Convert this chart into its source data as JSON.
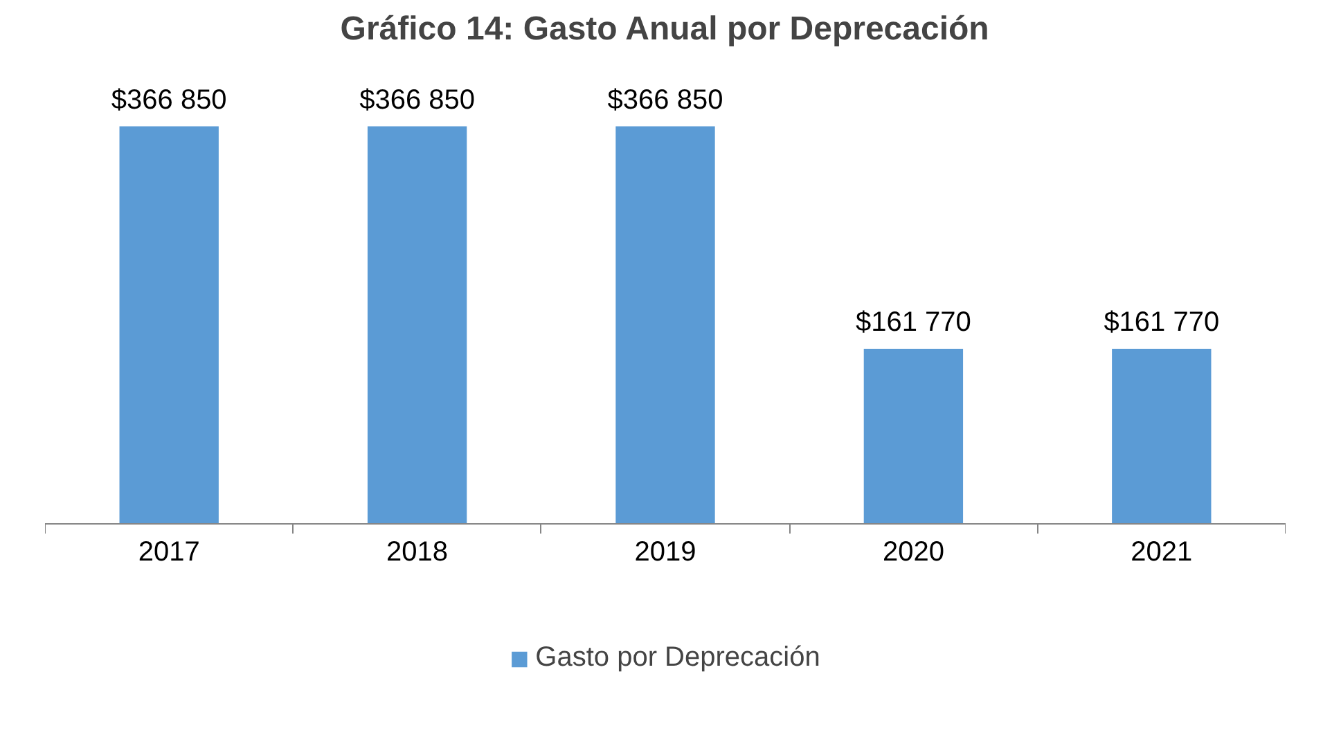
{
  "chart_data": {
    "type": "bar",
    "title": "Gráfico 14: Gasto Anual por Deprecación",
    "categories": [
      "2017",
      "2018",
      "2019",
      "2020",
      "2021"
    ],
    "series": [
      {
        "name": "Gasto por Deprecación",
        "color": "#5b9bd5",
        "values": [
          366850,
          366850,
          366850,
          161770,
          161770
        ],
        "value_labels": [
          "$366 850",
          "$366 850",
          "$366 850",
          "$161 770",
          "$161 770"
        ]
      }
    ],
    "legend": "bottom"
  }
}
